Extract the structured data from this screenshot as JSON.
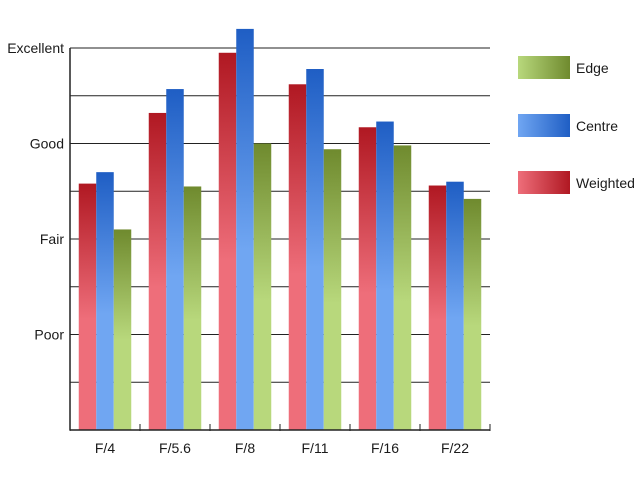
{
  "chart_data": {
    "type": "bar",
    "title": "",
    "xlabel": "",
    "ylabel": "",
    "categories": [
      "F/4",
      "F/5.6",
      "F/8",
      "F/11",
      "F/16",
      "F/22"
    ],
    "y_tick_labels": [
      {
        "label": "Poor",
        "value": 1
      },
      {
        "label": "Fair",
        "value": 2
      },
      {
        "label": "Good",
        "value": 3
      },
      {
        "label": "Excellent",
        "value": 4
      }
    ],
    "ylim": [
      0,
      4
    ],
    "grid": true,
    "legend_position": "right",
    "series": [
      {
        "name": "Weighted",
        "values": [
          2.58,
          3.32,
          3.95,
          3.62,
          3.17,
          2.56
        ],
        "color_light": "#ee6e7a",
        "color_dark": "#b01822"
      },
      {
        "name": "Centre",
        "values": [
          2.7,
          3.57,
          4.2,
          3.78,
          3.23,
          2.6
        ],
        "color_light": "#70a6f2",
        "color_dark": "#1f5ec4"
      },
      {
        "name": "Edge",
        "values": [
          2.1,
          2.55,
          3.0,
          2.94,
          2.98,
          2.42
        ],
        "color_light": "#b8d87c",
        "color_dark": "#6f8a2e"
      }
    ],
    "legend_order": [
      "Edge",
      "Centre",
      "Weighted"
    ]
  }
}
